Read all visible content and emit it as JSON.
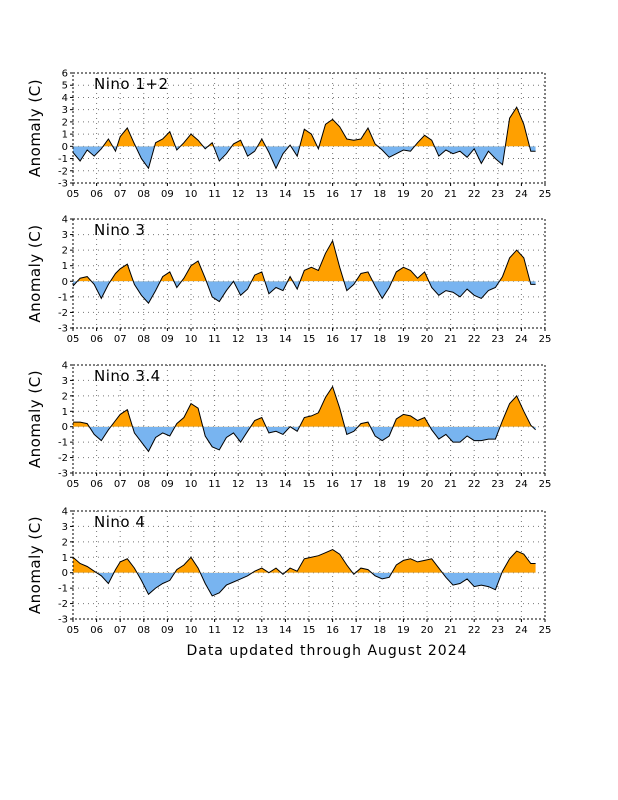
{
  "footer": "Data updated through August 2024",
  "chart_data": [
    {
      "type": "area",
      "title": "Nino 1+2",
      "ylabel": "Anomaly (C)",
      "ylim": [
        -3,
        6
      ],
      "yticks": [
        -3,
        -2,
        -1,
        0,
        1,
        2,
        3,
        4,
        5,
        6
      ],
      "xlim": [
        2005,
        2025
      ],
      "xticks": [
        "05",
        "06",
        "07",
        "08",
        "09",
        "10",
        "11",
        "12",
        "13",
        "14",
        "15",
        "16",
        "17",
        "18",
        "19",
        "20",
        "21",
        "22",
        "23",
        "24",
        "25"
      ],
      "grid": true,
      "positive_color": "#ffa000",
      "negative_color": "#78b4f0",
      "x": [
        2005.0,
        2005.3,
        2005.6,
        2005.9,
        2006.2,
        2006.5,
        2006.8,
        2007.0,
        2007.3,
        2007.6,
        2007.9,
        2008.2,
        2008.5,
        2008.8,
        2009.1,
        2009.4,
        2009.7,
        2010.0,
        2010.3,
        2010.6,
        2010.9,
        2011.2,
        2011.5,
        2011.8,
        2012.1,
        2012.4,
        2012.7,
        2013.0,
        2013.3,
        2013.6,
        2013.9,
        2014.2,
        2014.5,
        2014.8,
        2015.1,
        2015.4,
        2015.7,
        2016.0,
        2016.3,
        2016.6,
        2016.9,
        2017.2,
        2017.5,
        2017.8,
        2018.1,
        2018.4,
        2018.7,
        2019.0,
        2019.3,
        2019.6,
        2019.9,
        2020.2,
        2020.5,
        2020.8,
        2021.1,
        2021.4,
        2021.7,
        2022.0,
        2022.3,
        2022.6,
        2022.9,
        2023.2,
        2023.5,
        2023.8,
        2024.1,
        2024.4,
        2024.6
      ],
      "y": [
        -0.5,
        -1.2,
        -0.3,
        -0.8,
        -0.2,
        0.6,
        -0.4,
        0.8,
        1.5,
        0.2,
        -1.0,
        -1.8,
        0.3,
        0.6,
        1.2,
        -0.3,
        0.3,
        1.0,
        0.5,
        -0.2,
        0.3,
        -1.2,
        -0.6,
        0.2,
        0.5,
        -0.8,
        -0.4,
        0.6,
        -0.5,
        -1.8,
        -0.6,
        0.1,
        -0.8,
        1.4,
        1.0,
        -0.2,
        1.8,
        2.2,
        1.6,
        0.6,
        0.5,
        0.6,
        1.5,
        0.2,
        -0.3,
        -0.9,
        -0.6,
        -0.3,
        -0.4,
        0.3,
        0.9,
        0.5,
        -0.8,
        -0.3,
        -0.6,
        -0.4,
        -0.9,
        -0.2,
        -1.4,
        -0.4,
        -1.0,
        -1.5,
        2.3,
        3.2,
        1.8,
        -0.4,
        -0.4
      ]
    },
    {
      "type": "area",
      "title": "Nino 3",
      "ylabel": "Anomaly (C)",
      "ylim": [
        -3,
        4
      ],
      "yticks": [
        -3,
        -2,
        -1,
        0,
        1,
        2,
        3,
        4
      ],
      "xlim": [
        2005,
        2025
      ],
      "xticks": [
        "05",
        "06",
        "07",
        "08",
        "09",
        "10",
        "11",
        "12",
        "13",
        "14",
        "15",
        "16",
        "17",
        "18",
        "19",
        "20",
        "21",
        "22",
        "23",
        "24",
        "25"
      ],
      "grid": true,
      "positive_color": "#ffa000",
      "negative_color": "#78b4f0",
      "x": [
        2005.0,
        2005.3,
        2005.6,
        2005.9,
        2006.2,
        2006.5,
        2006.8,
        2007.0,
        2007.3,
        2007.6,
        2007.9,
        2008.2,
        2008.5,
        2008.8,
        2009.1,
        2009.4,
        2009.7,
        2010.0,
        2010.3,
        2010.6,
        2010.9,
        2011.2,
        2011.5,
        2011.8,
        2012.1,
        2012.4,
        2012.7,
        2013.0,
        2013.3,
        2013.6,
        2013.9,
        2014.2,
        2014.5,
        2014.8,
        2015.1,
        2015.4,
        2015.7,
        2016.0,
        2016.3,
        2016.6,
        2016.9,
        2017.2,
        2017.5,
        2017.8,
        2018.1,
        2018.4,
        2018.7,
        2019.0,
        2019.3,
        2019.6,
        2019.9,
        2020.2,
        2020.5,
        2020.8,
        2021.1,
        2021.4,
        2021.7,
        2022.0,
        2022.3,
        2022.6,
        2022.9,
        2023.2,
        2023.5,
        2023.8,
        2024.1,
        2024.4,
        2024.6
      ],
      "y": [
        -0.3,
        0.2,
        0.3,
        -0.2,
        -1.1,
        -0.2,
        0.5,
        0.8,
        1.1,
        -0.2,
        -0.9,
        -1.4,
        -0.6,
        0.3,
        0.6,
        -0.4,
        0.2,
        1.0,
        1.3,
        0.2,
        -1.0,
        -1.3,
        -0.6,
        0.0,
        -0.9,
        -0.5,
        0.4,
        0.6,
        -0.8,
        -0.4,
        -0.6,
        0.3,
        -0.5,
        0.7,
        0.9,
        0.7,
        1.8,
        2.6,
        0.9,
        -0.6,
        -0.2,
        0.5,
        0.6,
        -0.3,
        -1.1,
        -0.4,
        0.6,
        0.9,
        0.7,
        0.2,
        0.6,
        -0.4,
        -0.9,
        -0.6,
        -0.7,
        -1.0,
        -0.5,
        -0.9,
        -1.1,
        -0.6,
        -0.4,
        0.3,
        1.5,
        2.0,
        1.5,
        -0.2,
        -0.2
      ]
    },
    {
      "type": "area",
      "title": "Nino 3.4",
      "ylabel": "Anomaly (C)",
      "ylim": [
        -3,
        4
      ],
      "yticks": [
        -3,
        -2,
        -1,
        0,
        1,
        2,
        3,
        4
      ],
      "xlim": [
        2005,
        2025
      ],
      "xticks": [
        "05",
        "06",
        "07",
        "08",
        "09",
        "10",
        "11",
        "12",
        "13",
        "14",
        "15",
        "16",
        "17",
        "18",
        "19",
        "20",
        "21",
        "22",
        "23",
        "24",
        "25"
      ],
      "grid": true,
      "positive_color": "#ffa000",
      "negative_color": "#78b4f0",
      "x": [
        2005.0,
        2005.3,
        2005.6,
        2005.9,
        2006.2,
        2006.5,
        2006.8,
        2007.0,
        2007.3,
        2007.6,
        2007.9,
        2008.2,
        2008.5,
        2008.8,
        2009.1,
        2009.4,
        2009.7,
        2010.0,
        2010.3,
        2010.6,
        2010.9,
        2011.2,
        2011.5,
        2011.8,
        2012.1,
        2012.4,
        2012.7,
        2013.0,
        2013.3,
        2013.6,
        2013.9,
        2014.2,
        2014.5,
        2014.8,
        2015.1,
        2015.4,
        2015.7,
        2016.0,
        2016.3,
        2016.6,
        2016.9,
        2017.2,
        2017.5,
        2017.8,
        2018.1,
        2018.4,
        2018.7,
        2019.0,
        2019.3,
        2019.6,
        2019.9,
        2020.2,
        2020.5,
        2020.8,
        2021.1,
        2021.4,
        2021.7,
        2022.0,
        2022.3,
        2022.6,
        2022.9,
        2023.2,
        2023.5,
        2023.8,
        2024.1,
        2024.4,
        2024.6
      ],
      "y": [
        0.3,
        0.3,
        0.2,
        -0.5,
        -0.9,
        -0.2,
        0.4,
        0.8,
        1.1,
        -0.4,
        -1.0,
        -1.6,
        -0.7,
        -0.4,
        -0.6,
        0.2,
        0.6,
        1.5,
        1.2,
        -0.6,
        -1.3,
        -1.5,
        -0.7,
        -0.4,
        -1.0,
        -0.3,
        0.4,
        0.6,
        -0.4,
        -0.3,
        -0.5,
        0.0,
        -0.3,
        0.6,
        0.7,
        0.9,
        1.9,
        2.6,
        1.2,
        -0.5,
        -0.3,
        0.2,
        0.3,
        -0.6,
        -0.9,
        -0.6,
        0.5,
        0.8,
        0.7,
        0.4,
        0.6,
        -0.2,
        -0.8,
        -0.5,
        -1.0,
        -1.0,
        -0.6,
        -0.9,
        -0.9,
        -0.8,
        -0.8,
        0.4,
        1.5,
        2.0,
        1.0,
        0.1,
        -0.2
      ]
    },
    {
      "type": "area",
      "title": "Nino 4",
      "ylabel": "Anomaly (C)",
      "ylim": [
        -3,
        4
      ],
      "yticks": [
        -3,
        -2,
        -1,
        0,
        1,
        2,
        3,
        4
      ],
      "xlim": [
        2005,
        2025
      ],
      "xticks": [
        "05",
        "06",
        "07",
        "08",
        "09",
        "10",
        "11",
        "12",
        "13",
        "14",
        "15",
        "16",
        "17",
        "18",
        "19",
        "20",
        "21",
        "22",
        "23",
        "24",
        "25"
      ],
      "grid": true,
      "positive_color": "#ffa000",
      "negative_color": "#78b4f0",
      "x": [
        2005.0,
        2005.3,
        2005.6,
        2005.9,
        2006.2,
        2006.5,
        2006.8,
        2007.0,
        2007.3,
        2007.6,
        2007.9,
        2008.2,
        2008.5,
        2008.8,
        2009.1,
        2009.4,
        2009.7,
        2010.0,
        2010.3,
        2010.6,
        2010.9,
        2011.2,
        2011.5,
        2011.8,
        2012.1,
        2012.4,
        2012.7,
        2013.0,
        2013.3,
        2013.6,
        2013.9,
        2014.2,
        2014.5,
        2014.8,
        2015.1,
        2015.4,
        2015.7,
        2016.0,
        2016.3,
        2016.6,
        2016.9,
        2017.2,
        2017.5,
        2017.8,
        2018.1,
        2018.4,
        2018.7,
        2019.0,
        2019.3,
        2019.6,
        2019.9,
        2020.2,
        2020.5,
        2020.8,
        2021.1,
        2021.4,
        2021.7,
        2022.0,
        2022.3,
        2022.6,
        2022.9,
        2023.2,
        2023.5,
        2023.8,
        2024.1,
        2024.4,
        2024.6
      ],
      "y": [
        1.0,
        0.6,
        0.4,
        0.1,
        -0.2,
        -0.7,
        0.2,
        0.7,
        0.9,
        0.3,
        -0.5,
        -1.4,
        -1.0,
        -0.7,
        -0.5,
        0.2,
        0.5,
        1.0,
        0.3,
        -0.7,
        -1.5,
        -1.3,
        -0.8,
        -0.6,
        -0.4,
        -0.2,
        0.1,
        0.3,
        0.0,
        0.3,
        -0.1,
        0.3,
        0.1,
        0.9,
        1.0,
        1.1,
        1.3,
        1.5,
        1.2,
        0.5,
        -0.1,
        0.3,
        0.2,
        -0.2,
        -0.4,
        -0.3,
        0.5,
        0.8,
        0.9,
        0.7,
        0.8,
        0.9,
        0.3,
        -0.3,
        -0.8,
        -0.7,
        -0.4,
        -0.9,
        -0.8,
        -0.9,
        -1.1,
        0.1,
        0.9,
        1.4,
        1.2,
        0.6,
        0.6
      ]
    }
  ]
}
